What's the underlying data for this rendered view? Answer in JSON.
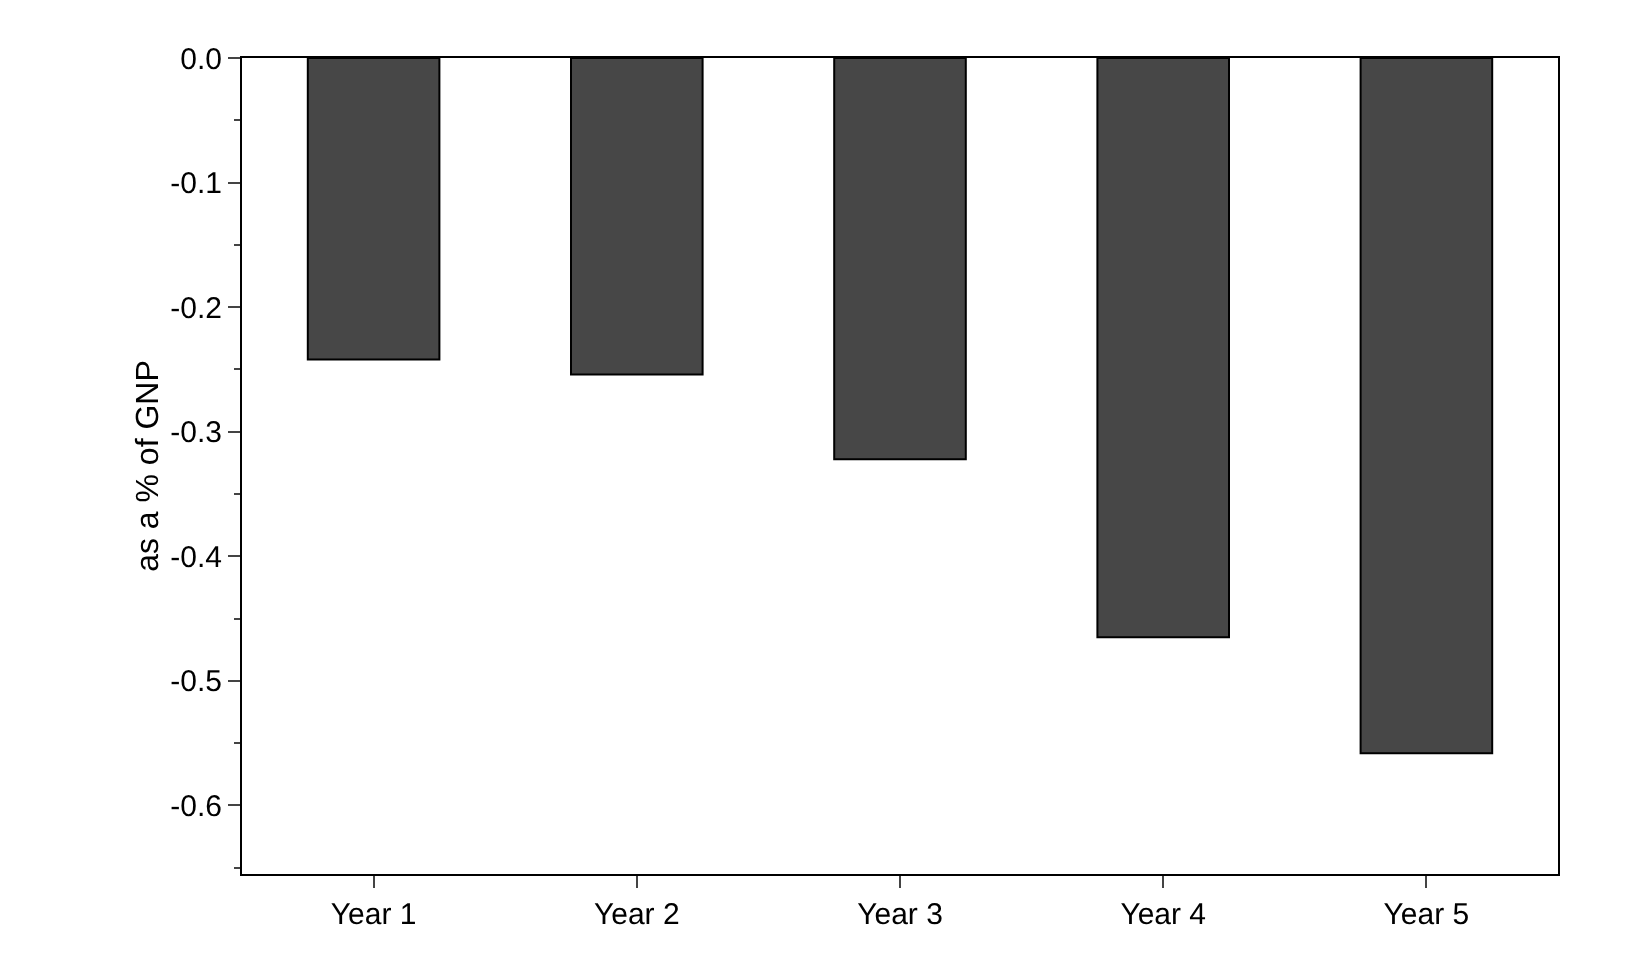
{
  "chart_data": {
    "type": "bar",
    "ylabel": "as a % of GNP",
    "categories": [
      "Year 1",
      "Year 2",
      "Year 3",
      "Year 4",
      "Year 5"
    ],
    "values": [
      -0.242,
      -0.254,
      -0.322,
      -0.465,
      -0.558
    ],
    "color": "#474747",
    "ylim": [
      -0.655,
      0
    ],
    "yticks": [
      {
        "value": 0,
        "label": "0.0"
      },
      -0.1,
      -0.2,
      -0.3,
      -0.4,
      -0.5,
      -0.6
    ],
    "grid": false
  }
}
